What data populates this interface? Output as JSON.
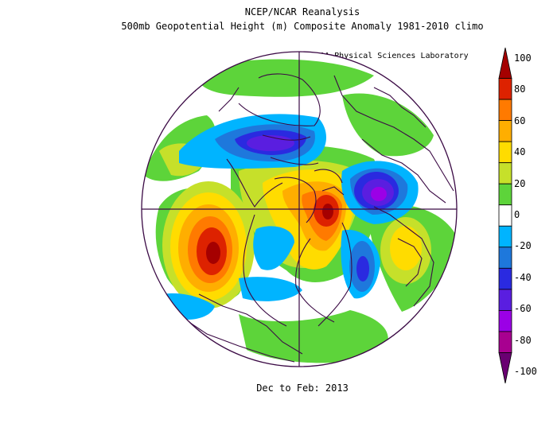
{
  "header": {
    "title": "NCEP/NCAR Reanalysis",
    "subtitle": "500mb Geopotential Height (m) Composite Anomaly 1981-2010 climo",
    "credit": "NOAA Physical Sciences Laboratory"
  },
  "footer": {
    "period": "Dec to Feb: 2013"
  },
  "colorbar": {
    "labels": [
      "100",
      "80",
      "60",
      "40",
      "20",
      "0",
      "-20",
      "-40",
      "-60",
      "-80",
      "-100"
    ],
    "colors": [
      "#a50000",
      "#dd2200",
      "#ff7a00",
      "#ffae00",
      "#ffdc00",
      "#c6e02a",
      "#5dd43a",
      "#ffffff",
      "#00b4ff",
      "#1e78dc",
      "#2a2ae0",
      "#5a1ee0",
      "#9b00e6",
      "#a80090",
      "#6a0072"
    ]
  },
  "colors": {
    "coast": "#3b0a45",
    "grid": "#3b0a45"
  }
}
